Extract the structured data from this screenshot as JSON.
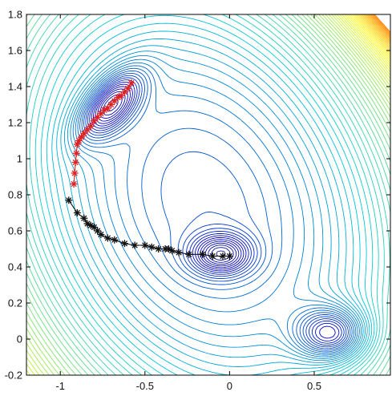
{
  "chart_data": {
    "type": "scatter",
    "title": "",
    "xlabel": "",
    "ylabel": "",
    "xlim": [
      -1.2,
      0.95
    ],
    "ylim": [
      -0.2,
      1.8
    ],
    "xticks": [
      "-1",
      "-0.5",
      "0",
      "0.5"
    ],
    "yticks": [
      "-0.2",
      "0",
      "0.2",
      "0.4",
      "0.6",
      "0.8",
      "1",
      "1.2",
      "1.4",
      "1.6",
      "1.8"
    ],
    "grid": false,
    "legend": "none",
    "background": "contour plot of a potential surface with three minima",
    "colormap": [
      "#1a237e",
      "#0000cc",
      "#00c8d8",
      "#ffff00",
      "#ff0000"
    ],
    "series": [
      {
        "color": "#e02020",
        "marker": "*",
        "x": [
          -0.92,
          -0.915,
          -0.91,
          -0.905,
          -0.9,
          -0.89,
          -0.875,
          -0.86,
          -0.84,
          -0.82,
          -0.8,
          -0.78,
          -0.76,
          -0.74,
          -0.72,
          -0.7,
          -0.68,
          -0.66,
          -0.64,
          -0.62,
          -0.6,
          -0.58
        ],
        "y": [
          0.86,
          0.92,
          0.98,
          1.03,
          1.08,
          1.1,
          1.12,
          1.14,
          1.16,
          1.18,
          1.21,
          1.23,
          1.25,
          1.27,
          1.28,
          1.3,
          1.32,
          1.34,
          1.35,
          1.37,
          1.39,
          1.42
        ]
      },
      {
        "color": "#111111",
        "marker": "*",
        "x": [
          -0.95,
          -0.9,
          -0.86,
          -0.84,
          -0.82,
          -0.8,
          -0.78,
          -0.76,
          -0.72,
          -0.68,
          -0.62,
          -0.56,
          -0.5,
          -0.46,
          -0.42,
          -0.38,
          -0.36,
          -0.34,
          -0.3,
          -0.24,
          -0.16,
          -0.1,
          -0.04,
          0.0
        ],
        "y": [
          0.77,
          0.7,
          0.67,
          0.64,
          0.63,
          0.62,
          0.6,
          0.58,
          0.56,
          0.55,
          0.53,
          0.52,
          0.52,
          0.51,
          0.5,
          0.5,
          0.5,
          0.49,
          0.48,
          0.47,
          0.47,
          0.46,
          0.46,
          0.46
        ]
      }
    ]
  }
}
